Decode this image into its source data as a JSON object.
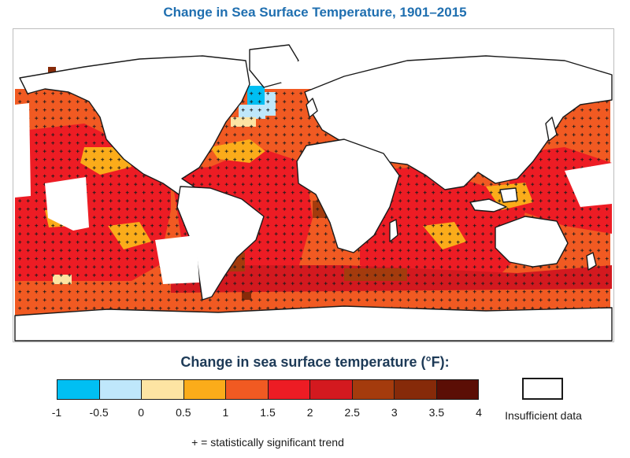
{
  "title": "Change in Sea Surface Temperature, 1901–2015",
  "legend": {
    "title": "Change in sea surface temperature (°F):",
    "bins": [
      {
        "from": -1,
        "to": -0.5,
        "color": "#00bff3"
      },
      {
        "from": -0.5,
        "to": 0,
        "color": "#bfe7fb"
      },
      {
        "from": 0,
        "to": 0.5,
        "color": "#fde4a3"
      },
      {
        "from": 0.5,
        "to": 1,
        "color": "#fbac1a"
      },
      {
        "from": 1,
        "to": 1.5,
        "color": "#f15a22"
      },
      {
        "from": 1.5,
        "to": 2,
        "color": "#ed1c24"
      },
      {
        "from": 2,
        "to": 2.5,
        "color": "#d3191f"
      },
      {
        "from": 2.5,
        "to": 3,
        "color": "#a43b0d"
      },
      {
        "from": 3,
        "to": 3.5,
        "color": "#862a09"
      },
      {
        "from": 3.5,
        "to": 4,
        "color": "#5b0e05"
      }
    ],
    "tick_labels": [
      "-1",
      "-0.5",
      "0",
      "0.5",
      "1",
      "1.5",
      "2",
      "2.5",
      "3",
      "3.5",
      "4"
    ],
    "insufficient_label": "Insufficient data",
    "significance_note": "+ = statistically significant trend"
  }
}
